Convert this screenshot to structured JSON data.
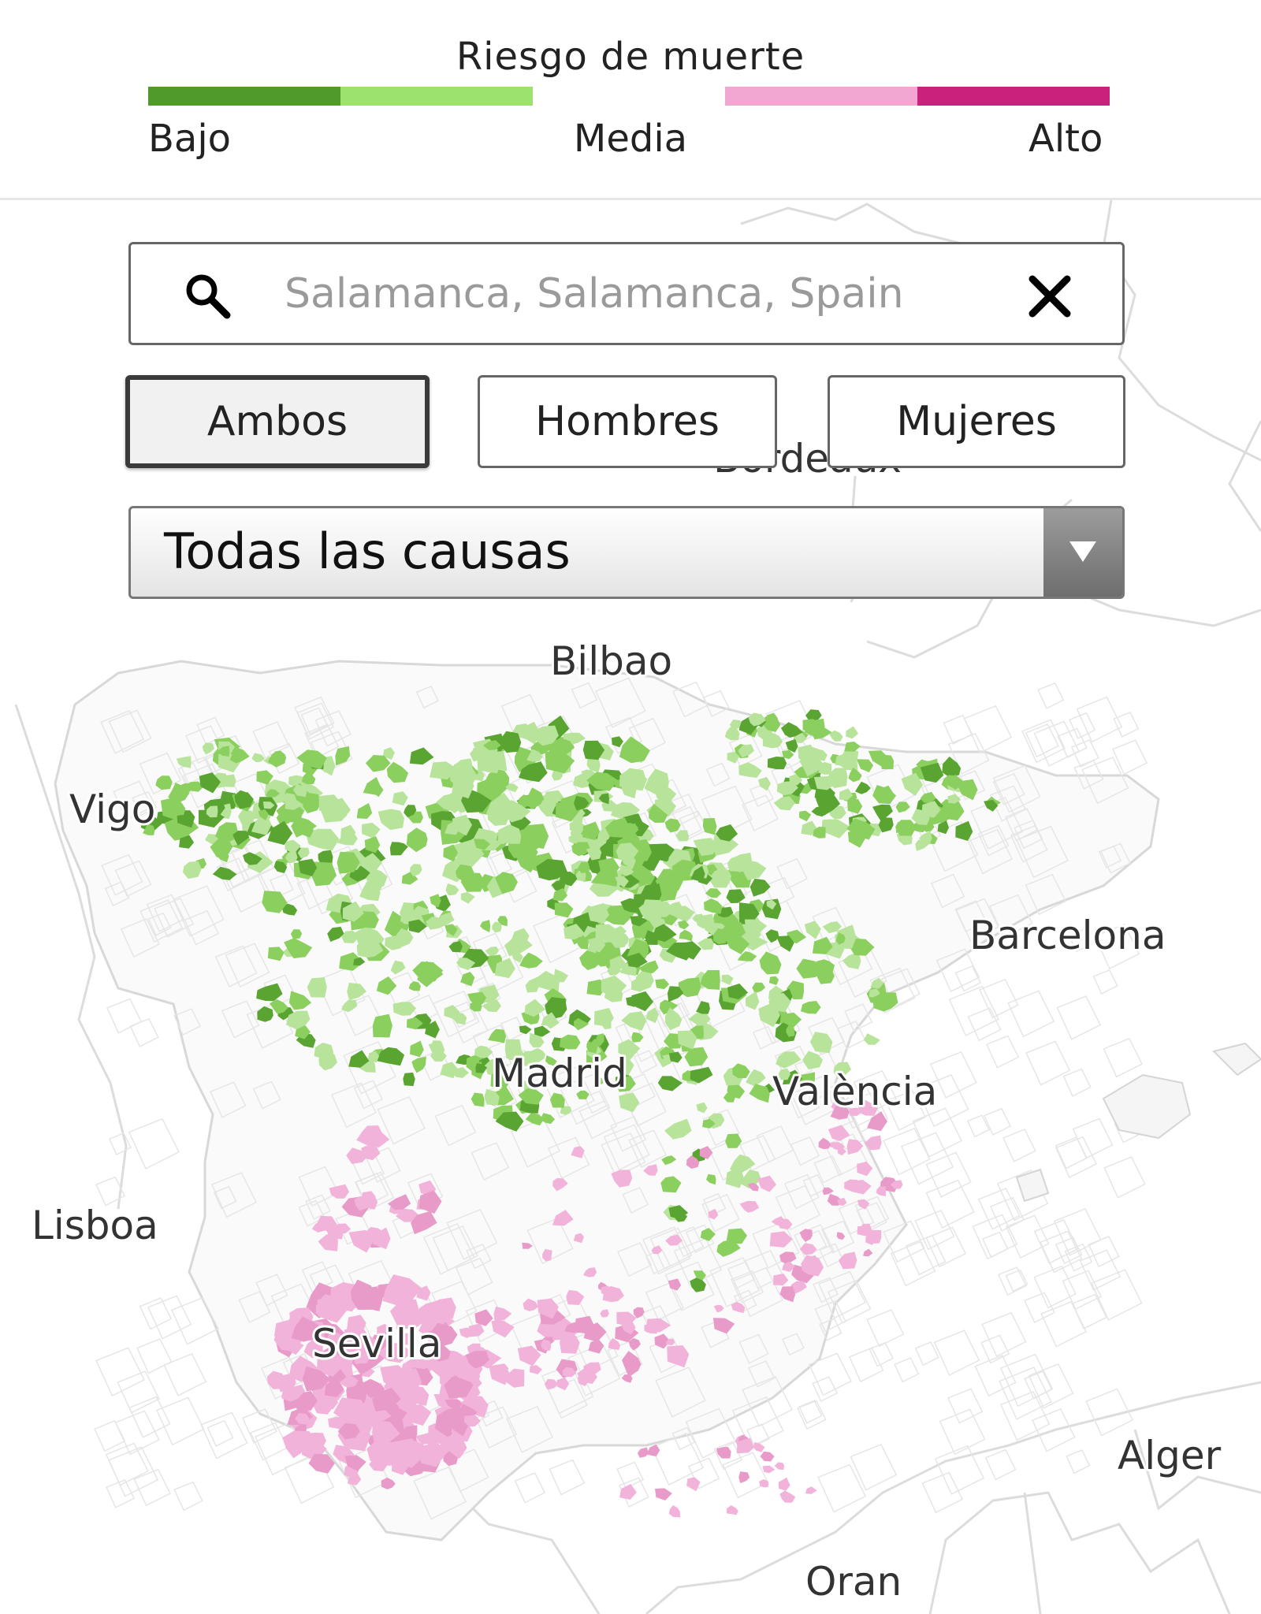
{
  "legend": {
    "title": "Riesgo de muerte",
    "labels": {
      "low": "Bajo",
      "mid": "Media",
      "high": "Alto"
    },
    "colors": [
      "#4f9a2b",
      "#9be26e",
      "#f2a6d2",
      "#c8227d"
    ]
  },
  "search": {
    "placeholder": "Salamanca, Salamanca, Spain",
    "value": ""
  },
  "sex_filter": {
    "options": [
      {
        "label": "Ambos",
        "active": true
      },
      {
        "label": "Hombres",
        "active": false
      },
      {
        "label": "Mujeres",
        "active": false
      }
    ]
  },
  "cause_select": {
    "selected": "Todas las causas"
  },
  "map": {
    "colors": {
      "green_dark": "#5aa532",
      "green_mid": "#8bcf5f",
      "green_light": "#b7e39a",
      "pink_light": "#f2b3da",
      "pink_mid": "#e89ac8",
      "magenta": "#b51e6b",
      "boundary": "#dddddd"
    },
    "cities": {
      "bilbao": "Bilbao",
      "vigo": "Vigo",
      "barcelona": "Barcelona",
      "madrid": "Madrid",
      "valencia": "València",
      "lisboa": "Lisboa",
      "sevilla": "Sevilla",
      "alger": "Alger",
      "oran": "Oran",
      "bordeaux": "Bordeaux"
    }
  }
}
